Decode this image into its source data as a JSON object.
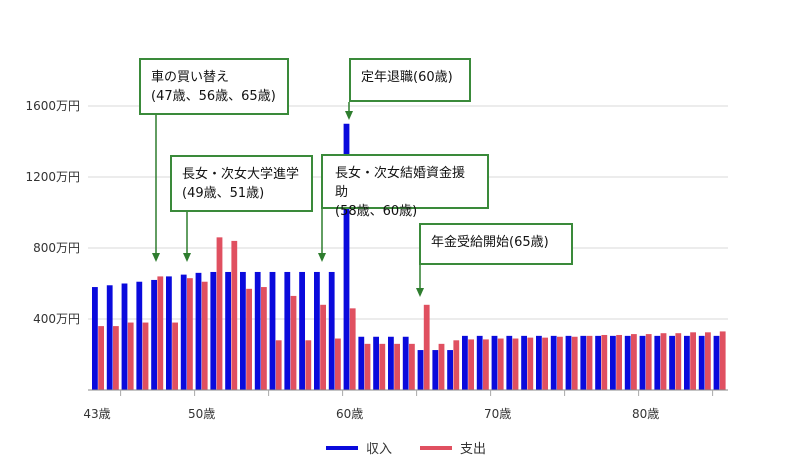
{
  "chart_data": {
    "type": "bar",
    "yTicks": [
      "400万円",
      "800万円",
      "1200万円",
      "1600万円"
    ],
    "yTickValues": [
      400,
      800,
      1200,
      1600
    ],
    "ylim": [
      0,
      1600
    ],
    "grid": true,
    "xTickLabels": [
      "43歳",
      "50歳",
      "60歳",
      "70歳",
      "80歳"
    ],
    "xTickAges": [
      43,
      50,
      60,
      70,
      80
    ],
    "x": [
      43,
      44,
      45,
      46,
      47,
      48,
      49,
      50,
      51,
      52,
      53,
      54,
      55,
      56,
      57,
      58,
      59,
      60,
      61,
      62,
      63,
      64,
      65,
      66,
      67,
      68,
      69,
      70,
      71,
      72,
      73,
      74,
      75,
      76,
      77,
      78,
      79,
      80,
      81,
      82,
      83,
      84,
      85
    ],
    "series": [
      {
        "name": "収入",
        "color": "#0a0adc",
        "values": [
          580,
          590,
          600,
          610,
          620,
          640,
          650,
          660,
          665,
          665,
          665,
          665,
          665,
          665,
          665,
          665,
          665,
          1500,
          300,
          300,
          300,
          300,
          225,
          225,
          225,
          305,
          305,
          305,
          305,
          305,
          305,
          305,
          305,
          305,
          305,
          305,
          305,
          305,
          305,
          305,
          305,
          305,
          305
        ]
      },
      {
        "name": "支出",
        "color": "#e05060",
        "values": [
          360,
          360,
          380,
          380,
          640,
          380,
          630,
          610,
          860,
          840,
          570,
          580,
          280,
          530,
          280,
          480,
          290,
          460,
          260,
          260,
          260,
          260,
          480,
          260,
          280,
          285,
          285,
          290,
          290,
          295,
          295,
          300,
          300,
          305,
          310,
          310,
          315,
          315,
          320,
          320,
          325,
          325,
          330
        ]
      }
    ],
    "annotations": [
      {
        "text": "車の買い替え\n(47歳、56歳、65歳)",
        "arrowAge": 47
      },
      {
        "text": "長女・次女大学進学\n(49歳、51歳)",
        "arrowAge": 49
      },
      {
        "text": "長女・次女結婚資金援助\n(58歳、60歳)",
        "arrowAge": 58
      },
      {
        "text": "定年退職(60歳)",
        "arrowAge": 60
      },
      {
        "text": "年金受給開始(65歳)",
        "arrowAge": 65
      }
    ],
    "legend": {
      "position": "bottom",
      "items": [
        {
          "label": "収入",
          "color": "#0a0adc"
        },
        {
          "label": "支出",
          "color": "#e05060"
        }
      ]
    }
  }
}
